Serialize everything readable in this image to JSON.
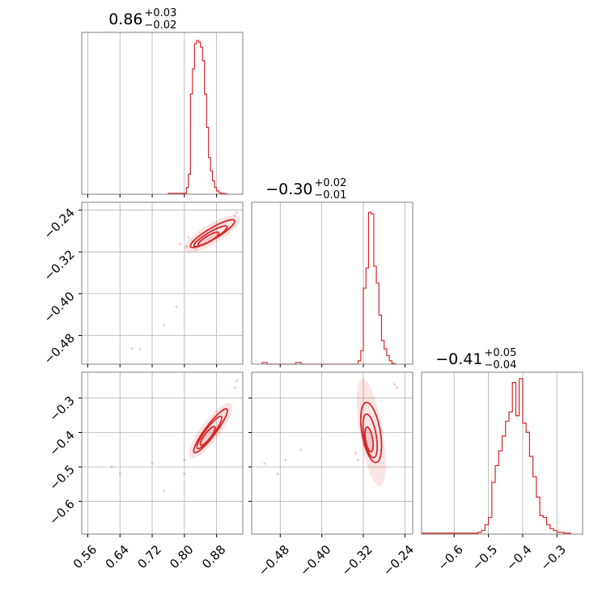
{
  "chart_data": {
    "type": "corner",
    "color": "#d62728",
    "contour_color": "#d62728",
    "grid": true,
    "parameters": [
      {
        "median": "0.86",
        "plus": "+0.03",
        "minus": "−0.02",
        "range": [
          0.545,
          0.945
        ]
      },
      {
        "median": "−0.30",
        "plus": "+0.02",
        "minus": "−0.01",
        "range": [
          -0.535,
          -0.225
        ]
      },
      {
        "median": "−0.41",
        "plus": "+0.05",
        "minus": "−0.04",
        "range": [
          -0.695,
          -0.225
        ]
      }
    ],
    "ticks": {
      "p0_x": [
        {
          "v": 0.56,
          "label": "0.56"
        },
        {
          "v": 0.64,
          "label": "0.64"
        },
        {
          "v": 0.72,
          "label": "0.72"
        },
        {
          "v": 0.8,
          "label": "0.80"
        },
        {
          "v": 0.88,
          "label": "0.88"
        }
      ],
      "p1_x": [
        {
          "v": -0.48,
          "label": "−0.48"
        },
        {
          "v": -0.4,
          "label": "−0.40"
        },
        {
          "v": -0.32,
          "label": "−0.32"
        },
        {
          "v": -0.24,
          "label": "−0.24"
        }
      ],
      "p1_y": [
        {
          "v": -0.24,
          "label": "−0.24"
        },
        {
          "v": -0.32,
          "label": "−0.32"
        },
        {
          "v": -0.4,
          "label": "−0.40"
        },
        {
          "v": -0.48,
          "label": "−0.48"
        }
      ],
      "p2_x": [
        {
          "v": -0.6,
          "label": "−0.6"
        },
        {
          "v": -0.5,
          "label": "−0.5"
        },
        {
          "v": -0.4,
          "label": "−0.4"
        },
        {
          "v": -0.3,
          "label": "−0.3"
        }
      ],
      "p2_y": [
        {
          "v": -0.3,
          "label": "−0.3"
        },
        {
          "v": -0.4,
          "label": "−0.4"
        },
        {
          "v": -0.5,
          "label": "−0.5"
        },
        {
          "v": -0.6,
          "label": "−0.6"
        }
      ]
    },
    "hist_p0": {
      "edges": [
        0.76,
        0.805,
        0.81,
        0.815,
        0.82,
        0.825,
        0.83,
        0.835,
        0.84,
        0.845,
        0.85,
        0.855,
        0.86,
        0.865,
        0.87,
        0.875,
        0.88,
        0.885,
        0.89,
        0.895,
        0.9,
        0.905,
        0.91
      ],
      "counts": [
        0.5,
        4,
        12,
        60,
        75,
        90,
        92,
        91,
        88,
        80,
        60,
        40,
        22,
        14,
        8,
        4,
        2,
        1,
        0.5,
        0.5,
        0.2,
        0
      ],
      "max": 93
    },
    "hist_p1": {
      "edges": [
        -0.515,
        -0.505,
        -0.45,
        -0.44,
        -0.33,
        -0.325,
        -0.32,
        -0.315,
        -0.31,
        -0.305,
        -0.3,
        -0.295,
        -0.29,
        -0.285,
        -0.28,
        -0.275,
        -0.27,
        -0.265,
        -0.26,
        -0.255
      ],
      "counts": [
        1,
        0,
        1,
        0,
        2,
        8,
        45,
        57,
        90,
        89,
        58,
        48,
        29,
        14,
        9,
        5,
        2,
        0.5,
        0
      ],
      "max": 92
    },
    "hist_p2": {
      "edges": [
        -0.695,
        -0.605,
        -0.595,
        -0.53,
        -0.52,
        -0.51,
        -0.5,
        -0.49,
        -0.48,
        -0.47,
        -0.46,
        -0.45,
        -0.44,
        -0.43,
        -0.42,
        -0.41,
        -0.4,
        -0.39,
        -0.38,
        -0.37,
        -0.36,
        -0.35,
        -0.34,
        -0.33,
        -0.32,
        -0.31,
        -0.3,
        -0.29,
        -0.28,
        -0.27,
        -0.26
      ],
      "counts": [
        0.5,
        0.5,
        0.5,
        1,
        2,
        5,
        9,
        28,
        37,
        45,
        53,
        61,
        66,
        82,
        64,
        84,
        60,
        55,
        42,
        31,
        20,
        10,
        9,
        5,
        3,
        2,
        1,
        1,
        0.5,
        0.5
      ],
      "max": 84
    },
    "scatter_p0_p1": {
      "points": [
        [
          0.67,
          -0.505
        ],
        [
          0.69,
          -0.506
        ],
        [
          0.75,
          -0.46
        ],
        [
          0.78,
          -0.425
        ],
        [
          0.79,
          -0.305
        ],
        [
          0.81,
          -0.292
        ],
        [
          0.815,
          -0.31
        ],
        [
          0.93,
          -0.245
        ],
        [
          0.925,
          -0.25
        ],
        [
          0.805,
          -0.31
        ],
        [
          0.83,
          -0.315
        ],
        [
          0.82,
          -0.3
        ]
      ],
      "contours": [
        {
          "cx": 0.87,
          "cy": -0.285,
          "rx": 0.06,
          "ry": 0.011,
          "angle": 0.43
        },
        {
          "cx": 0.865,
          "cy": -0.29,
          "rx": 0.045,
          "ry": 0.008,
          "angle": 0.43
        },
        {
          "cx": 0.86,
          "cy": -0.295,
          "rx": 0.028,
          "ry": 0.006,
          "angle": 0.43
        }
      ]
    },
    "scatter_p0_p2": {
      "points": [
        [
          0.62,
          -0.5
        ],
        [
          0.64,
          -0.52
        ],
        [
          0.72,
          -0.49
        ],
        [
          0.75,
          -0.57
        ],
        [
          0.8,
          -0.52
        ],
        [
          0.8,
          -0.48
        ],
        [
          0.93,
          -0.25
        ],
        [
          0.925,
          -0.27
        ]
      ],
      "contours": [
        {
          "cx": 0.865,
          "cy": -0.395,
          "rx": 0.075,
          "ry": 0.014,
          "angle": 1.0
        },
        {
          "cx": 0.862,
          "cy": -0.4,
          "rx": 0.055,
          "ry": 0.011,
          "angle": 1.0
        },
        {
          "cx": 0.858,
          "cy": -0.41,
          "rx": 0.032,
          "ry": 0.008,
          "angle": 1.0
        }
      ]
    },
    "scatter_p1_p2": {
      "points": [
        [
          -0.51,
          -0.49
        ],
        [
          -0.485,
          -0.52
        ],
        [
          -0.47,
          -0.48
        ],
        [
          -0.44,
          -0.45
        ],
        [
          -0.26,
          -0.26
        ],
        [
          -0.255,
          -0.27
        ],
        [
          -0.33,
          -0.48
        ],
        [
          -0.335,
          -0.46
        ]
      ],
      "contours": [
        {
          "cx": -0.305,
          "cy": -0.4,
          "rx": 0.018,
          "ry": 0.085,
          "angle": 0.25
        },
        {
          "cx": -0.307,
          "cy": -0.41,
          "rx": 0.012,
          "ry": 0.062,
          "angle": 0.25
        },
        {
          "cx": -0.309,
          "cy": -0.42,
          "rx": 0.007,
          "ry": 0.035,
          "angle": 0.25
        }
      ]
    }
  }
}
